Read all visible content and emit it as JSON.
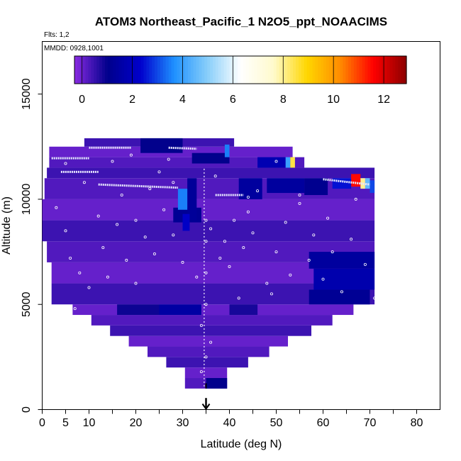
{
  "chart_data": {
    "type": "heatmap",
    "title": "ATOM3 Northeast_Pacific_1 N2O5_ppt_NOAACIMS",
    "flights_label": "Flts: 1,2",
    "dates_label": "MMDD: 0928,1001",
    "xlabel": "Latitude (deg N)",
    "ylabel": "Altitude (m)",
    "xlim": [
      0,
      85
    ],
    "ylim": [
      0,
      17500
    ],
    "x_ticks": [
      0,
      5,
      10,
      20,
      30,
      40,
      50,
      60,
      70,
      80
    ],
    "x_minor_ticks": [
      15,
      25,
      35,
      45,
      55,
      65,
      75
    ],
    "y_ticks": [
      0,
      5000,
      10000,
      15000
    ],
    "colorbar": {
      "min": -0.3,
      "max": 12.9,
      "ticks": [
        0,
        2,
        4,
        6,
        8,
        10,
        12
      ],
      "colors": [
        "#8a2be2",
        "#00008b",
        "#0000cd",
        "#1e90ff",
        "#87cefa",
        "#ffffff",
        "#fffacd",
        "#ffd700",
        "#ff8c00",
        "#ff0000",
        "#8b0000"
      ]
    },
    "marker_latitude": 35,
    "field_envelope": [
      {
        "alt": 1000,
        "lat": [
          30.5,
          39.5
        ]
      },
      {
        "alt": 1500,
        "lat": [
          30.5,
          39.5
        ]
      },
      {
        "alt": 2000,
        "lat": [
          26.5,
          44.0
        ]
      },
      {
        "alt": 2500,
        "lat": [
          22.5,
          48.5
        ]
      },
      {
        "alt": 3000,
        "lat": [
          18.5,
          52.5
        ]
      },
      {
        "alt": 3500,
        "lat": [
          14.5,
          57.5
        ]
      },
      {
        "alt": 4000,
        "lat": [
          10.5,
          62.0
        ]
      },
      {
        "alt": 4500,
        "lat": [
          6.5,
          66.5
        ]
      },
      {
        "alt": 5000,
        "lat": [
          2.0,
          71.0
        ]
      },
      {
        "alt": 6000,
        "lat": [
          2.0,
          71.0
        ]
      },
      {
        "alt": 7000,
        "lat": [
          1.0,
          71.0
        ]
      },
      {
        "alt": 8000,
        "lat": [
          0.0,
          71.0
        ]
      },
      {
        "alt": 9000,
        "lat": [
          0.0,
          71.0
        ]
      },
      {
        "alt": 10000,
        "lat": [
          0.5,
          71.0
        ]
      },
      {
        "alt": 11000,
        "lat": [
          1.0,
          71.0
        ]
      },
      {
        "alt": 11500,
        "lat": [
          1.5,
          56.0
        ]
      },
      {
        "alt": 12000,
        "lat": [
          1.5,
          53.5
        ]
      },
      {
        "alt": 12500,
        "lat": [
          9.0,
          41.0
        ]
      },
      {
        "alt": 12900,
        "lat": [
          19.0,
          41.0
        ]
      }
    ],
    "data_cells": [
      {
        "lat": [
          35,
          39.5
        ],
        "alt": [
          1000,
          1500
        ],
        "value": 1.0
      },
      {
        "lat": [
          25,
          34
        ],
        "alt": [
          4500,
          5000
        ],
        "value": 1.5
      },
      {
        "lat": [
          16,
          25
        ],
        "alt": [
          4500,
          5000
        ],
        "value": 0.9
      },
      {
        "lat": [
          40,
          46
        ],
        "alt": [
          4500,
          5000
        ],
        "value": 0.8
      },
      {
        "lat": [
          57,
          70
        ],
        "alt": [
          5000,
          5700
        ],
        "value": 1.2
      },
      {
        "lat": [
          58,
          71
        ],
        "alt": [
          5700,
          6700
        ],
        "value": 1.7
      },
      {
        "lat": [
          57,
          71
        ],
        "alt": [
          6700,
          7500
        ],
        "value": 1.4
      },
      {
        "lat": [
          28,
          34
        ],
        "alt": [
          8900,
          9600
        ],
        "value": 1.2
      },
      {
        "lat": [
          31,
          33
        ],
        "alt": [
          9000,
          11000
        ],
        "value": 1.3
      },
      {
        "lat": [
          29,
          31
        ],
        "alt": [
          9500,
          10500
        ],
        "value": 3.5
      },
      {
        "lat": [
          30,
          31.5
        ],
        "alt": [
          8500,
          9300
        ],
        "value": 2.2
      },
      {
        "lat": [
          42,
          47
        ],
        "alt": [
          10000,
          11000
        ],
        "value": 1.4
      },
      {
        "lat": [
          48,
          56
        ],
        "alt": [
          10300,
          11000
        ],
        "value": 1.4
      },
      {
        "lat": [
          56,
          61
        ],
        "alt": [
          10200,
          11000
        ],
        "value": 1.1
      },
      {
        "lat": [
          46,
          52
        ],
        "alt": [
          11500,
          12000
        ],
        "value": 1.8
      },
      {
        "lat": [
          52,
          53
        ],
        "alt": [
          11500,
          12000
        ],
        "value": 4.0
      },
      {
        "lat": [
          53,
          54
        ],
        "alt": [
          11500,
          12000
        ],
        "value": 8.5
      },
      {
        "lat": [
          32,
          40
        ],
        "alt": [
          11700,
          12200
        ],
        "value": 1.0
      },
      {
        "lat": [
          39,
          40
        ],
        "alt": [
          12000,
          12600
        ],
        "value": 3.5
      },
      {
        "lat": [
          21,
          30
        ],
        "alt": [
          12200,
          12900
        ],
        "value": 1.0
      },
      {
        "lat": [
          66,
          68
        ],
        "alt": [
          10600,
          11200
        ],
        "value": 11.5
      },
      {
        "lat": [
          68,
          69
        ],
        "alt": [
          10500,
          11000
        ],
        "value": 8.0
      },
      {
        "lat": [
          69,
          70
        ],
        "alt": [
          10500,
          11000
        ],
        "value": 4.5
      },
      {
        "lat": [
          62,
          66
        ],
        "alt": [
          10500,
          11000
        ],
        "value": 2.5
      },
      {
        "lat": [
          70,
          71
        ],
        "alt": [
          10300,
          10900
        ],
        "value": 3.0
      }
    ],
    "flight_tracks": [
      {
        "lat": [
          2,
          10
        ],
        "alt": [
          11950,
          11950
        ]
      },
      {
        "lat": [
          10,
          19
        ],
        "alt": [
          12450,
          12450
        ]
      },
      {
        "lat": [
          27,
          33
        ],
        "alt": [
          12450,
          12400
        ]
      },
      {
        "lat": [
          4,
          12
        ],
        "alt": [
          11300,
          11300
        ]
      },
      {
        "lat": [
          12,
          29
        ],
        "alt": [
          10700,
          10550
        ]
      },
      {
        "lat": [
          37,
          43
        ],
        "alt": [
          10200,
          10200
        ]
      },
      {
        "lat": [
          60,
          70
        ],
        "alt": [
          10950,
          10700
        ]
      }
    ],
    "profile_line": {
      "lat": 34.6,
      "alt": [
        1100,
        11500
      ]
    },
    "sample_points": [
      [
        3,
        9600
      ],
      [
        5,
        8500
      ],
      [
        6,
        7200
      ],
      [
        8,
        6500
      ],
      [
        10,
        5800
      ],
      [
        7,
        4800
      ],
      [
        12,
        9200
      ],
      [
        13,
        7700
      ],
      [
        14,
        6300
      ],
      [
        16,
        8800
      ],
      [
        17,
        10200
      ],
      [
        18,
        7100
      ],
      [
        20,
        9000
      ],
      [
        20,
        6000
      ],
      [
        22,
        8200
      ],
      [
        23,
        10500
      ],
      [
        24,
        7400
      ],
      [
        25,
        11300
      ],
      [
        26,
        9500
      ],
      [
        28,
        8300
      ],
      [
        28,
        10800
      ],
      [
        30,
        7000
      ],
      [
        33,
        6300
      ],
      [
        36,
        8600
      ],
      [
        38,
        7200
      ],
      [
        39,
        8000
      ],
      [
        40,
        6800
      ],
      [
        41,
        9000
      ],
      [
        42,
        5300
      ],
      [
        43,
        7700
      ],
      [
        44,
        9400
      ],
      [
        45,
        8400
      ],
      [
        46,
        10400
      ],
      [
        48,
        6000
      ],
      [
        49,
        5500
      ],
      [
        50,
        7500
      ],
      [
        52,
        8900
      ],
      [
        53,
        6400
      ],
      [
        55,
        9800
      ],
      [
        57,
        7100
      ],
      [
        58,
        8300
      ],
      [
        60,
        6200
      ],
      [
        61,
        9100
      ],
      [
        62,
        7500
      ],
      [
        64,
        5600
      ],
      [
        66,
        8100
      ],
      [
        67,
        10000
      ],
      [
        69,
        6900
      ],
      [
        71,
        5300
      ],
      [
        5,
        11700
      ],
      [
        9,
        10800
      ],
      [
        15,
        11800
      ],
      [
        19,
        12100
      ],
      [
        27,
        11900
      ],
      [
        37,
        11100
      ],
      [
        50,
        11800
      ],
      [
        55,
        10200
      ],
      [
        44,
        10100
      ],
      [
        35,
        9000
      ],
      [
        35,
        8000
      ],
      [
        35,
        6500
      ],
      [
        35,
        5000
      ],
      [
        34,
        4000
      ],
      [
        36,
        3200
      ],
      [
        35,
        2500
      ],
      [
        34,
        1800
      ]
    ]
  }
}
